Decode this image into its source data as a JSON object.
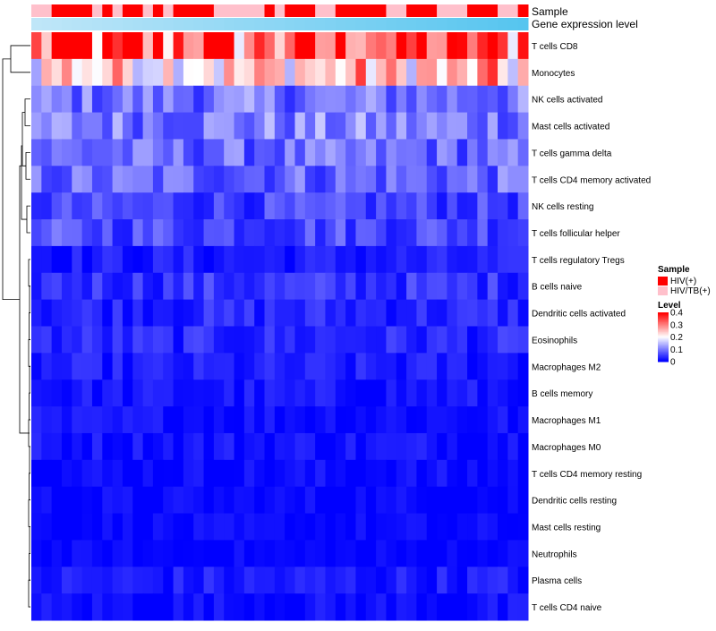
{
  "chart_data": {
    "type": "heatmap",
    "title": "",
    "colorscale": {
      "stops": [
        {
          "value": 0.0,
          "color": "#0000ff"
        },
        {
          "value": 0.2,
          "color": "#ffffff"
        },
        {
          "value": 0.4,
          "color": "#ff0000"
        }
      ],
      "range": [
        0,
        0.4
      ]
    },
    "annotation_tracks": [
      {
        "name": "Sample",
        "type": "categorical"
      },
      {
        "name": "Gene expression level",
        "type": "gradient",
        "colors": [
          "#bfe6f8",
          "#56c5ef"
        ]
      }
    ],
    "sample_palette": {
      "HIV(+)": "#ff0000",
      "HIV/TB(+)": "#ffc0cb"
    },
    "samples": [
      "HIV/TB(+)",
      "HIV/TB(+)",
      "HIV(+)",
      "HIV(+)",
      "HIV(+)",
      "HIV(+)",
      "HIV/TB(+)",
      "HIV(+)",
      "HIV/TB(+)",
      "HIV(+)",
      "HIV(+)",
      "HIV/TB(+)",
      "HIV(+)",
      "HIV/TB(+)",
      "HIV(+)",
      "HIV(+)",
      "HIV(+)",
      "HIV(+)",
      "HIV/TB(+)",
      "HIV/TB(+)",
      "HIV/TB(+)",
      "HIV/TB(+)",
      "HIV/TB(+)",
      "HIV(+)",
      "HIV/TB(+)",
      "HIV(+)",
      "HIV(+)",
      "HIV(+)",
      "HIV/TB(+)",
      "HIV/TB(+)",
      "HIV(+)",
      "HIV(+)",
      "HIV(+)",
      "HIV(+)",
      "HIV(+)",
      "HIV/TB(+)",
      "HIV/TB(+)",
      "HIV(+)",
      "HIV(+)",
      "HIV(+)",
      "HIV/TB(+)",
      "HIV/TB(+)",
      "HIV/TB(+)",
      "HIV(+)",
      "HIV(+)",
      "HIV(+)",
      "HIV/TB(+)",
      "HIV/TB(+)",
      "HIV(+)"
    ],
    "rows": [
      "T cells CD8",
      "Monocytes",
      "NK cells activated",
      "Mast cells activated",
      "T cells gamma delta",
      "T cells CD4 memory activated",
      "NK cells resting",
      "T cells follicular helper",
      "T cells regulatory  Tregs",
      "B cells naive",
      "Dendritic cells activated",
      "Eosinophils",
      "Macrophages M2",
      "B cells memory",
      "Macrophages M1",
      "Macrophages M0",
      "T cells CD4 memory resting",
      "Dendritic cells resting",
      "Mast cells resting",
      "Neutrophils",
      "Plasma cells",
      "T cells CD4 naive"
    ],
    "row_means": [
      0.3,
      0.22,
      0.09,
      0.1,
      0.08,
      0.08,
      0.05,
      0.06,
      0.02,
      0.04,
      0.03,
      0.03,
      0.02,
      0.015,
      0.012,
      0.015,
      0.008,
      0.005,
      0.004,
      0.002,
      0.02,
      0.01
    ],
    "legend": {
      "sample_title": "Sample",
      "sample_items": [
        {
          "label": "HIV(+)",
          "color": "#ff0000"
        },
        {
          "label": "HIV/TB(+)",
          "color": "#ffc0cb"
        }
      ],
      "level_title": "Level",
      "level_ticks": [
        {
          "value": 0.4,
          "label": "0.4"
        },
        {
          "value": 0.3,
          "label": "0.3"
        },
        {
          "value": 0.2,
          "label": "0.2"
        },
        {
          "value": 0.1,
          "label": "0.1"
        },
        {
          "value": 0,
          "label": "0"
        }
      ]
    },
    "dendrogram": "hierarchical clustering of rows"
  }
}
